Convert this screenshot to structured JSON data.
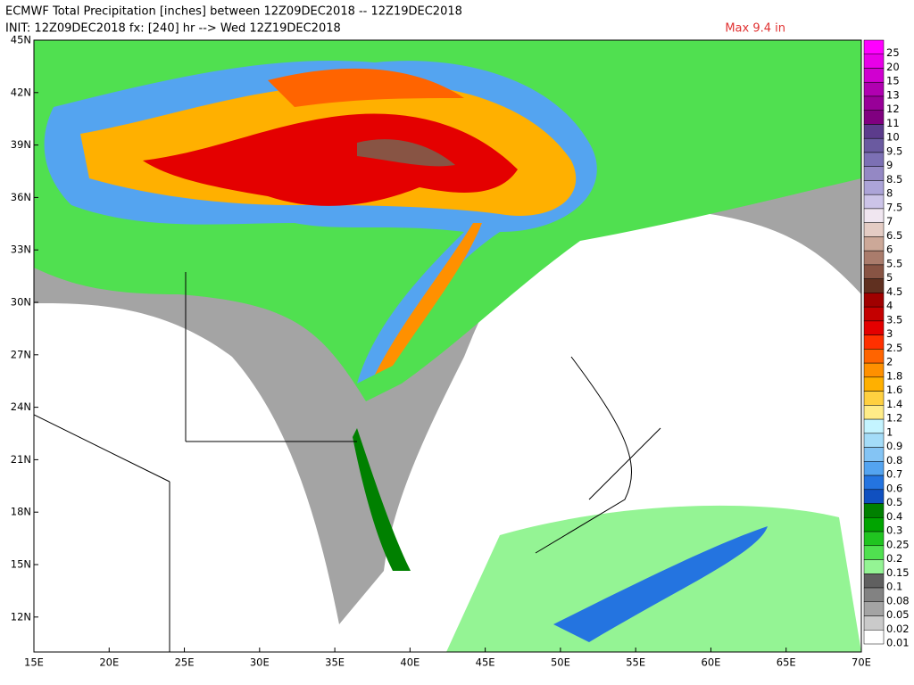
{
  "header": {
    "line1": "ECMWF Total Precipitation [inches] between 12Z09DEC2018 -- 12Z19DEC2018",
    "line2": "INIT: 12Z09DEC2018 fx: [240] hr --> Wed 12Z19DEC2018",
    "max_label": "Max 9.4 in"
  },
  "map": {
    "lonlim": [
      15,
      70
    ],
    "latlim": [
      10,
      45
    ],
    "lon_ticks": [
      {
        "value": 15,
        "label": "15E"
      },
      {
        "value": 20,
        "label": "20E"
      },
      {
        "value": 25,
        "label": "25E"
      },
      {
        "value": 30,
        "label": "30E"
      },
      {
        "value": 35,
        "label": "35E"
      },
      {
        "value": 40,
        "label": "40E"
      },
      {
        "value": 45,
        "label": "45E"
      },
      {
        "value": 50,
        "label": "50E"
      },
      {
        "value": 55,
        "label": "55E"
      },
      {
        "value": 60,
        "label": "60E"
      },
      {
        "value": 65,
        "label": "65E"
      },
      {
        "value": 70,
        "label": "70E"
      }
    ],
    "lat_ticks": [
      {
        "value": 12,
        "label": "12N"
      },
      {
        "value": 15,
        "label": "15N"
      },
      {
        "value": 18,
        "label": "18N"
      },
      {
        "value": 21,
        "label": "21N"
      },
      {
        "value": 24,
        "label": "24N"
      },
      {
        "value": 27,
        "label": "27N"
      },
      {
        "value": 30,
        "label": "30N"
      },
      {
        "value": 33,
        "label": "33N"
      },
      {
        "value": 36,
        "label": "36N"
      },
      {
        "value": 39,
        "label": "39N"
      },
      {
        "value": 42,
        "label": "42N"
      },
      {
        "value": 45,
        "label": "45N"
      }
    ]
  },
  "colorbar": {
    "levels": [
      {
        "value": 25,
        "color": "#ff00ff"
      },
      {
        "value": 20,
        "color": "#e800e8"
      },
      {
        "value": 15,
        "color": "#d000d0"
      },
      {
        "value": 13,
        "color": "#b000b0"
      },
      {
        "value": 12,
        "color": "#980098"
      },
      {
        "value": 11,
        "color": "#800080"
      },
      {
        "value": 10,
        "color": "#5c3c8c"
      },
      {
        "value": 9.5,
        "color": "#6a5aa0"
      },
      {
        "value": 9,
        "color": "#7c70b4"
      },
      {
        "value": 8.5,
        "color": "#9488c4"
      },
      {
        "value": 8,
        "color": "#ac a4d8"
      },
      {
        "value": 7.5,
        "color": "#ccc4e8"
      },
      {
        "value": 7,
        "color": "#f0e6f0"
      },
      {
        "value": 6.5,
        "color": "#e4ccc4"
      },
      {
        "value": 6,
        "color": "#cca898"
      },
      {
        "value": 5.5,
        "color": "#aa7c6c"
      },
      {
        "value": 5,
        "color": "#885444"
      },
      {
        "value": 4.5,
        "color": "#603020"
      },
      {
        "value": 4,
        "color": "#a00000"
      },
      {
        "value": 3.5,
        "color": "#c40000"
      },
      {
        "value": 3,
        "color": "#e40000"
      },
      {
        "value": 2.5,
        "color": "#ff3000"
      },
      {
        "value": 2,
        "color": "#ff6400"
      },
      {
        "value": 1.8,
        "color": "#ff9000"
      },
      {
        "value": 1.6,
        "color": "#ffb000"
      },
      {
        "value": 1.4,
        "color": "#ffd040"
      },
      {
        "value": 1.2,
        "color": "#ffec88"
      },
      {
        "value": 1,
        "color": "#c4f4ff"
      },
      {
        "value": 0.9,
        "color": "#a4dcf8"
      },
      {
        "value": 0.8,
        "color": "#84c4f4"
      },
      {
        "value": 0.7,
        "color": "#54a4f0"
      },
      {
        "value": 0.6,
        "color": "#2474e0"
      },
      {
        "value": 0.5,
        "color": "#1050c0"
      },
      {
        "value": 0.4,
        "color": "#008000"
      },
      {
        "value": 0.3,
        "color": "#00a400"
      },
      {
        "value": 0.25,
        "color": "#20c420"
      },
      {
        "value": 0.2,
        "color": "#50e050"
      },
      {
        "value": 0.15,
        "color": "#94f494"
      },
      {
        "value": 0.1,
        "color": "#606060"
      },
      {
        "value": 0.08,
        "color": "#828282"
      },
      {
        "value": 0.05,
        "color": "#a4a4a4"
      },
      {
        "value": 0.02,
        "color": "#cacaca"
      },
      {
        "value": 0.01,
        "color": "#ffffff"
      }
    ]
  }
}
